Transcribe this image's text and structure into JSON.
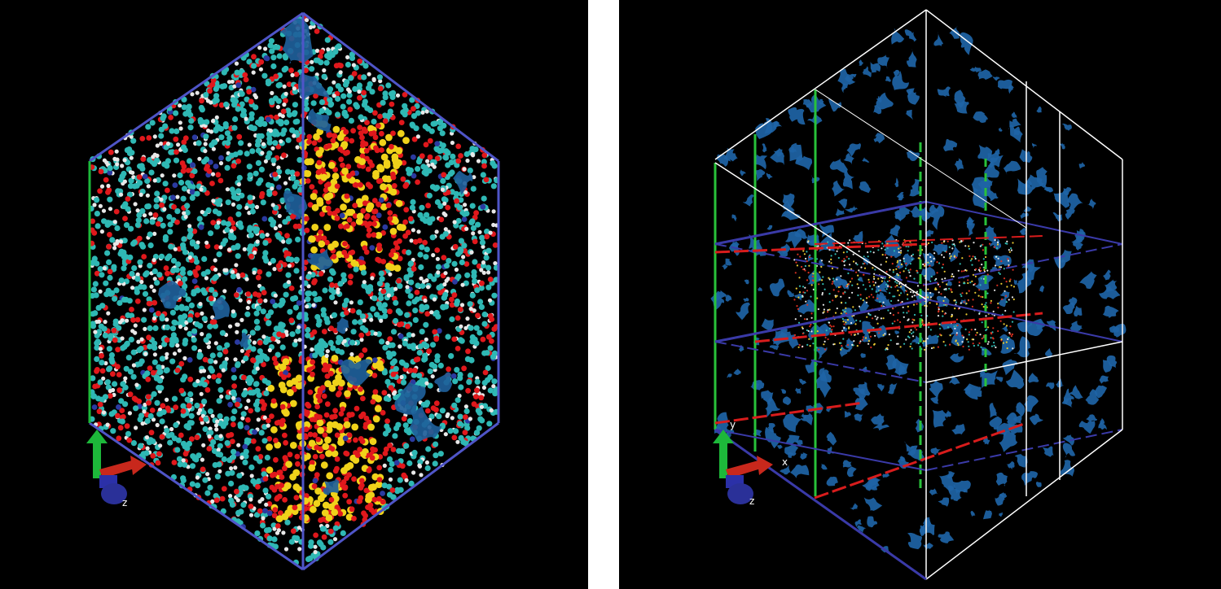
{
  "panels": [
    {
      "id": "left",
      "box_color": "#4f55c8",
      "atom_colors": [
        "#2fb8b4",
        "#e8e8e8",
        "#e0181c",
        "#f0d21a",
        "#2b3aa0"
      ],
      "isosurface_color": "#1e5f9a",
      "axes": {
        "z_label": "z"
      }
    },
    {
      "id": "right",
      "box_color": "#ffffff",
      "grid_colors": [
        "#28c23a",
        "#d81c1c",
        "#3a3aa8"
      ],
      "isosurface_color": "#1e64a6",
      "axes": {
        "x_label": "x",
        "y_label": "y",
        "z_label": "z"
      }
    }
  ]
}
